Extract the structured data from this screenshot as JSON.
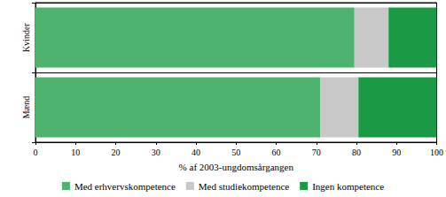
{
  "chart_data": {
    "type": "bar",
    "orientation": "horizontal",
    "stacked": true,
    "categories": [
      "Kvinder",
      "Mænd"
    ],
    "series": [
      {
        "name": "Med erhvervskompetence",
        "color": "#4db36f",
        "values": [
          79.5,
          71
        ]
      },
      {
        "name": "Med studiekompetence",
        "color": "#c8c8c8",
        "values": [
          8.5,
          9.5
        ]
      },
      {
        "name": "Ingen kompetence",
        "color": "#1a9a45",
        "values": [
          12,
          19.5
        ]
      }
    ],
    "xlabel": "% af 2003-ungdomsårgangen",
    "xlim": [
      0,
      100
    ],
    "xticks": [
      0,
      10,
      20,
      30,
      40,
      50,
      60,
      70,
      80,
      90,
      100
    ],
    "legend": "bottom",
    "grid": false
  }
}
